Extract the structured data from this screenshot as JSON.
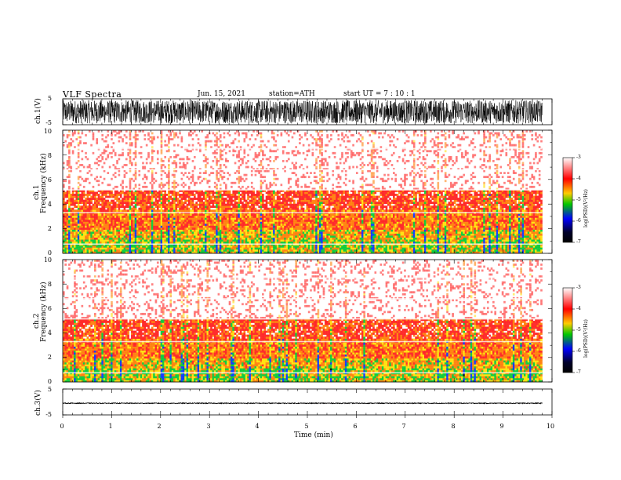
{
  "header": {
    "title": "VLF Spectra",
    "date": "Jun. 15, 2021",
    "station": "station=ATH",
    "start": "start UT =   7 : 10 : 1"
  },
  "chart_data": [
    {
      "type": "line",
      "name": "ch1-waveform",
      "ylabel": "ch.1(V)",
      "ylim": [
        -5,
        5
      ],
      "yticks": [
        "5",
        "-5"
      ],
      "xlim": [
        0,
        10
      ],
      "amplitude_range": [
        -4.5,
        4.5
      ],
      "trace_end_min": 9.8
    },
    {
      "type": "heatmap",
      "name": "ch1-spectrogram",
      "ylabel_top": "ch.1",
      "ylabel": "Frequency (kHz)",
      "ylim": [
        0,
        10
      ],
      "yticks": [
        "0",
        "2",
        "4",
        "6",
        "8",
        "10"
      ],
      "xlim": [
        0,
        10
      ],
      "colorbar": {
        "label": "log(PSD)(V²/Hz)",
        "ticks": [
          "-3",
          "-4",
          "-5",
          "-6",
          "-7"
        ],
        "range": [
          -7,
          -3
        ]
      },
      "colors": [
        "#ffffff",
        "#ff0000",
        "#ffff00",
        "#00c800",
        "#0000ff",
        "#000000"
      ],
      "bands_khz": [
        {
          "from": 0,
          "to": 1.0,
          "level": -4.7
        },
        {
          "from": 1.0,
          "to": 1.8,
          "level": -4.5
        },
        {
          "from": 1.8,
          "to": 3.4,
          "level": -4.2
        },
        {
          "from": 3.4,
          "to": 5.1,
          "level": -3.9
        },
        {
          "from": 5.1,
          "to": 10,
          "level": -3.4
        }
      ]
    },
    {
      "type": "heatmap",
      "name": "ch2-spectrogram",
      "ylabel_top": "ch.2",
      "ylabel": "Frequency (kHz)",
      "ylim": [
        0,
        10
      ],
      "yticks": [
        "0",
        "2",
        "4",
        "6",
        "8",
        "10"
      ],
      "xlim": [
        0,
        10
      ],
      "colorbar": {
        "label": "log(PSD)(V²/Hz)",
        "ticks": [
          "-3",
          "-4",
          "-5",
          "-6",
          "-7"
        ],
        "range": [
          -7,
          -3
        ]
      },
      "bands_khz": [
        {
          "from": 0,
          "to": 1.0,
          "level": -4.7
        },
        {
          "from": 1.0,
          "to": 1.8,
          "level": -4.5
        },
        {
          "from": 1.8,
          "to": 3.4,
          "level": -4.2
        },
        {
          "from": 3.4,
          "to": 5.1,
          "level": -3.9
        },
        {
          "from": 5.1,
          "to": 10,
          "level": -3.4
        }
      ]
    },
    {
      "type": "line",
      "name": "ch3-waveform",
      "ylabel": "ch.3(V)",
      "ylim": [
        -5,
        5
      ],
      "yticks": [
        "5",
        "-5"
      ],
      "xlim": [
        0,
        10
      ],
      "amplitude_range": [
        -1.0,
        0.0
      ],
      "trace_end_min": 9.8
    }
  ],
  "xaxis": {
    "label": "Time (min)",
    "ticks": [
      "0",
      "1",
      "2",
      "3",
      "4",
      "5",
      "6",
      "7",
      "8",
      "9",
      "10"
    ]
  }
}
